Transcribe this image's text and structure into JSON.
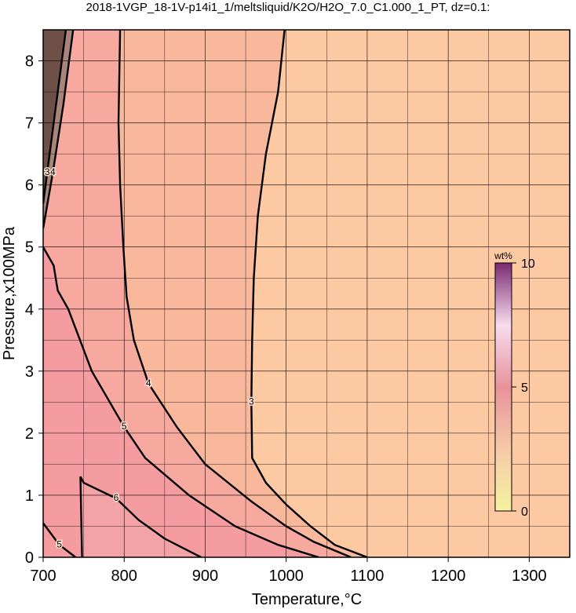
{
  "chart_data": {
    "type": "contour",
    "title": "2018-1VGP_18-1V-p14i1_1/meltsliquid/K2O/H2O_7.0_C1.000_1_PT, dz=0.1:",
    "xlabel": "Temperature,°C",
    "ylabel": "Pressure,x100MPa",
    "xlim": [
      700,
      1350
    ],
    "ylim": [
      0,
      8.5
    ],
    "xticks": [
      700,
      800,
      900,
      1000,
      1100,
      1200,
      1300
    ],
    "yticks": [
      0,
      1,
      2,
      3,
      4,
      5,
      6,
      7,
      8
    ],
    "xminor": [
      750,
      850,
      950,
      1050,
      1150,
      1250
    ],
    "yminor": [
      0.5,
      1.5,
      2.5,
      3.5,
      4.5,
      5.5,
      6.5,
      7.5
    ],
    "grid": true,
    "background": "#fdc9a3",
    "contours": [
      {
        "level": 3,
        "fill": "#f9b89c",
        "x": [
          998,
          990,
          975,
          965,
          960,
          958,
          957,
          958,
          975,
          1000,
          1030,
          1060,
          1100
        ],
        "y": [
          8.5,
          7.5,
          6.5,
          5.5,
          4.5,
          3.5,
          2.5,
          1.6,
          1.2,
          0.85,
          0.5,
          0.2,
          0
        ]
      },
      {
        "level": 4,
        "fill": "#f7a9a0",
        "x": [
          795,
          793,
          795,
          799,
          803,
          812,
          830,
          865,
          900,
          957,
          1000,
          1034,
          1080
        ],
        "y": [
          8.5,
          7,
          6,
          5,
          4.2,
          3.5,
          2.8,
          2.1,
          1.5,
          0.9,
          0.5,
          0.25,
          0
        ]
      },
      {
        "level": 5,
        "fill": "#f49ca0",
        "x": [
          700,
          713,
          718,
          731,
          760,
          800,
          826,
          880,
          937,
          990,
          1040
        ],
        "y": [
          5.0,
          4.7,
          4.3,
          4.0,
          3.0,
          2.1,
          1.6,
          1.0,
          0.5,
          0.2,
          0
        ]
      },
      {
        "level": 6,
        "fill": "#f3a3a6",
        "x": [
          748,
          746,
          750,
          790,
          818,
          850,
          895
        ],
        "y": [
          0,
          1.3,
          1.2,
          0.95,
          0.6,
          0.3,
          0
        ]
      },
      {
        "level": 5,
        "x": [
          700,
          720,
          740
        ],
        "y": [
          0.55,
          0.2,
          0
        ]
      },
      {
        "level": 4,
        "fill": "#a8847a",
        "x": [
          737,
          725,
          712,
          700
        ],
        "y": [
          8.5,
          7.3,
          6.2,
          5.3
        ]
      },
      {
        "level": 3,
        "fill": "#6e5048",
        "x": [
          728,
          715,
          705,
          700
        ],
        "y": [
          8.5,
          7.2,
          6.2,
          5.7
        ]
      }
    ],
    "colorbar": {
      "label": "wt%",
      "lim": [
        0,
        10
      ],
      "ticks": [
        0,
        5,
        10
      ]
    }
  }
}
